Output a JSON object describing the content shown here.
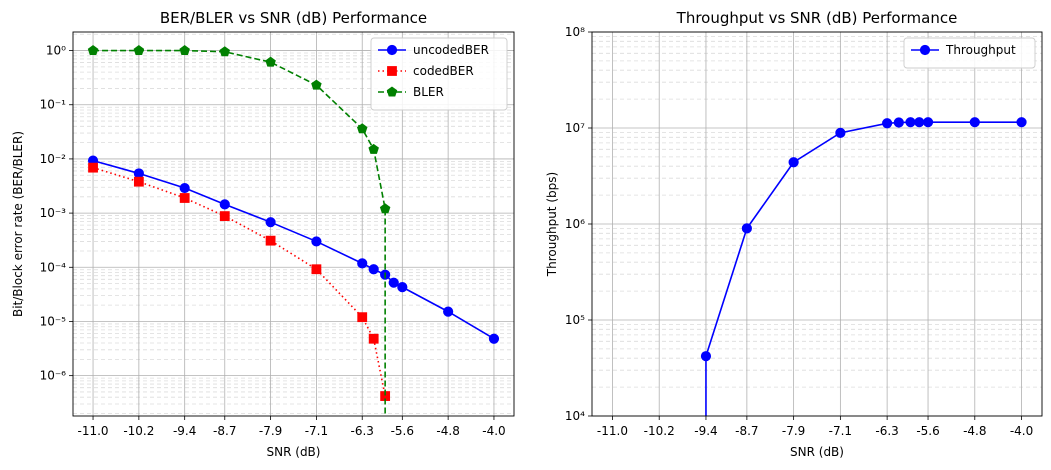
{
  "chart_data": [
    {
      "type": "line",
      "title": "BER/BLER vs SNR (dB) Performance",
      "xlabel": "SNR (dB)",
      "ylabel": "Bit/Block error rate (BER/BLER)",
      "yscale": "log",
      "xlim": [
        -11.35,
        -3.65
      ],
      "ylim": [
        1.8e-07,
        2.2
      ],
      "xticks": [
        -11.0,
        -10.2,
        -9.4,
        -8.7,
        -7.9,
        -7.1,
        -6.3,
        -5.6,
        -4.8,
        -4.0
      ],
      "xtick_labels": [
        "-11.0",
        "-10.2",
        "-9.4",
        "-8.7",
        "-7.9",
        "-7.1",
        "-6.3",
        "-5.6",
        "-4.8",
        "-4.0"
      ],
      "yticks": [
        1e-06,
        1e-05,
        0.0001,
        0.001,
        0.01,
        0.1,
        1
      ],
      "ytick_labels": [
        "10⁻⁶",
        "10⁻⁵",
        "10⁻⁴",
        "10⁻³",
        "10⁻²",
        "10⁻¹",
        "10⁰"
      ],
      "grid": true,
      "legend_position": "top-right",
      "series": [
        {
          "name": "uncodedBER",
          "color": "#0000ff",
          "linestyle": "solid",
          "marker": "circle",
          "x": [
            -11.0,
            -10.2,
            -9.4,
            -8.7,
            -7.9,
            -7.1,
            -6.3,
            -6.1,
            -5.9,
            -5.75,
            -5.6,
            -4.8,
            -4.0
          ],
          "y": [
            0.0093,
            0.0054,
            0.0029,
            0.00145,
            0.00068,
            0.0003,
            0.000118,
            9.2e-05,
            7.3e-05,
            5.2e-05,
            4.3e-05,
            1.52e-05,
            4.8e-06
          ]
        },
        {
          "name": "codedBER",
          "color": "#ff0000",
          "linestyle": "dotted",
          "marker": "square",
          "x": [
            -11.0,
            -10.2,
            -9.4,
            -8.7,
            -7.9,
            -7.1,
            -6.3,
            -6.1,
            -5.9
          ],
          "y": [
            0.0069,
            0.0038,
            0.0019,
            0.00088,
            0.00031,
            9.2e-05,
            1.2e-05,
            4.8e-06,
            4.2e-07
          ]
        },
        {
          "name": "BLER",
          "color": "#008000",
          "linestyle": "dashed",
          "marker": "pentagon",
          "x": [
            -11.0,
            -10.2,
            -9.4,
            -8.7,
            -7.9,
            -7.1,
            -6.3,
            -6.1,
            -5.9,
            -5.9
          ],
          "y": [
            1.0,
            1.0,
            1.0,
            0.95,
            0.61,
            0.23,
            0.036,
            0.015,
            0.0012,
            1.8e-07
          ]
        }
      ]
    },
    {
      "type": "line",
      "title": "Throughput vs SNR (dB) Performance",
      "xlabel": "SNR (dB)",
      "ylabel": "Throughput (bps)",
      "yscale": "log",
      "xlim": [
        -11.35,
        -3.65
      ],
      "ylim": [
        10000,
        100000000
      ],
      "xticks": [
        -11.0,
        -10.2,
        -9.4,
        -8.7,
        -7.9,
        -7.1,
        -6.3,
        -5.6,
        -4.8,
        -4.0
      ],
      "xtick_labels": [
        "-11.0",
        "-10.2",
        "-9.4",
        "-8.7",
        "-7.9",
        "-7.1",
        "-6.3",
        "-5.6",
        "-4.8",
        "-4.0"
      ],
      "yticks": [
        10000,
        100000,
        1000000,
        10000000,
        100000000
      ],
      "ytick_labels": [
        "10⁴",
        "10⁵",
        "10⁶",
        "10⁷",
        "10⁸"
      ],
      "grid": true,
      "legend_position": "top-right",
      "series": [
        {
          "name": "Throughput",
          "color": "#0000ff",
          "linestyle": "solid",
          "marker": "circle",
          "x": [
            -9.4,
            -9.4,
            -8.7,
            -7.9,
            -7.1,
            -6.3,
            -6.1,
            -5.9,
            -5.75,
            -5.6,
            -4.8,
            -4.0
          ],
          "y": [
            10000,
            42000,
            900000,
            4400000,
            8900000,
            11200000,
            11400000,
            11500000,
            11500000,
            11500000,
            11500000,
            11500000
          ],
          "marker_from_index": 1
        }
      ]
    }
  ]
}
